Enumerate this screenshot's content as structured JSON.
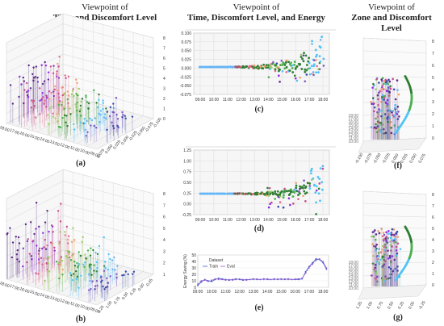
{
  "headers": {
    "left": {
      "line1": "Viewpoint of",
      "line2": "Time and Discomfort Level"
    },
    "middle": {
      "line1": "Viewpoint of",
      "line2": "Time, Discomfort Level, and Energy"
    },
    "right": {
      "line1": "Viewpoint of",
      "line2": "Zone and Discomfort Level"
    }
  },
  "panels": {
    "a": {
      "label": "(a)",
      "z_ticks": [
        "0",
        "1",
        "2",
        "3",
        "4",
        "5",
        "6",
        "7",
        "8"
      ],
      "x_ticks": [
        "18:00",
        "17:00",
        "16:00",
        "15:00",
        "14:00",
        "13:00",
        "12:00",
        "11:00",
        "10:00",
        "09:00"
      ]
    },
    "b": {
      "label": "(b)",
      "z_ticks": [
        "1",
        "2",
        "3",
        "4",
        "5",
        "6",
        "7",
        "8"
      ],
      "x_ticks": [
        "18:00",
        "17:00",
        "16:00",
        "15:00",
        "14:00",
        "13:00",
        "12:00",
        "11:00",
        "10:00",
        "09:00"
      ]
    },
    "c": {
      "label": "(c)",
      "y_ticks": [
        "0.100",
        "0.075",
        "0.050",
        "0.025",
        "0.000",
        "-0.025",
        "-0.050",
        "-0.075"
      ],
      "x_ticks": [
        "09:00",
        "10:00",
        "11:00",
        "12:00",
        "13:00",
        "14:00",
        "15:00",
        "16:00",
        "17:00",
        "18:00"
      ]
    },
    "d": {
      "label": "(d)",
      "y_ticks": [
        "1.25",
        "1.00",
        "0.75",
        "0.50",
        "0.25",
        "0.00",
        "-0.25"
      ],
      "x_ticks": [
        "09:00",
        "10:00",
        "11:00",
        "12:00",
        "13:00",
        "14:00",
        "15:00",
        "16:00",
        "17:00",
        "18:00"
      ]
    },
    "e": {
      "label": "(e)"
    },
    "f": {
      "label": "(f)",
      "z_ticks": [
        "0",
        "1",
        "2",
        "3",
        "4",
        "5",
        "6",
        "7",
        "8"
      ],
      "x_ticks": [
        "-0.100",
        "-0.075",
        "-0.050",
        "-0.025",
        "0.000",
        "0.025",
        "0.050",
        "0.075"
      ]
    },
    "g": {
      "label": "(g)",
      "z_ticks": [
        "0",
        "1",
        "2",
        "3",
        "4",
        "5",
        "6",
        "7",
        "8"
      ],
      "x_ticks": [
        "1.25",
        "1.00",
        "0.75",
        "0.50",
        "0.25",
        "0.00",
        "-0.25"
      ]
    }
  },
  "chart_data": {
    "type": "line",
    "title": "",
    "xlabel": "",
    "ylabel": "Energy Saving (%)",
    "ylim": [
      0,
      50
    ],
    "y_ticks": [
      0,
      10,
      20,
      30,
      40,
      50
    ],
    "x_ticks": [
      "09:00",
      "10:00",
      "11:00",
      "12:00",
      "13:00",
      "14:00",
      "15:00",
      "16:00",
      "17:00",
      "18:00"
    ],
    "legend_title": "Dataset",
    "legend_position": "top-left",
    "x": [
      9.0,
      9.25,
      9.5,
      9.75,
      10.0,
      10.25,
      10.5,
      10.75,
      11.0,
      11.25,
      11.5,
      11.75,
      12.0,
      12.25,
      12.5,
      12.75,
      13.0,
      13.25,
      13.5,
      13.75,
      14.0,
      14.25,
      14.5,
      14.75,
      15.0,
      15.25,
      15.5,
      15.75,
      16.0,
      16.25,
      16.5,
      16.75,
      17.0,
      17.25,
      17.5,
      17.75,
      18.0,
      18.25
    ],
    "series": [
      {
        "name": "Train",
        "color": "#3a5ccc",
        "values": [
          3,
          8,
          12,
          10,
          9,
          12,
          14,
          13,
          12,
          11,
          12,
          13,
          12,
          11,
          12,
          12,
          13,
          12,
          12,
          13,
          12,
          12,
          13,
          12,
          13,
          12,
          13,
          12,
          12,
          12,
          13,
          24,
          32,
          38,
          44,
          43,
          38,
          28
        ]
      },
      {
        "name": "Eval",
        "color": "#9b59d0",
        "values": [
          5,
          10,
          11,
          9,
          11,
          13,
          12,
          12,
          11,
          12,
          11,
          12,
          13,
          12,
          11,
          12,
          12,
          13,
          12,
          12,
          13,
          12,
          12,
          13,
          12,
          13,
          12,
          12,
          13,
          13,
          14,
          22,
          30,
          36,
          42,
          44,
          40,
          30
        ]
      }
    ]
  }
}
